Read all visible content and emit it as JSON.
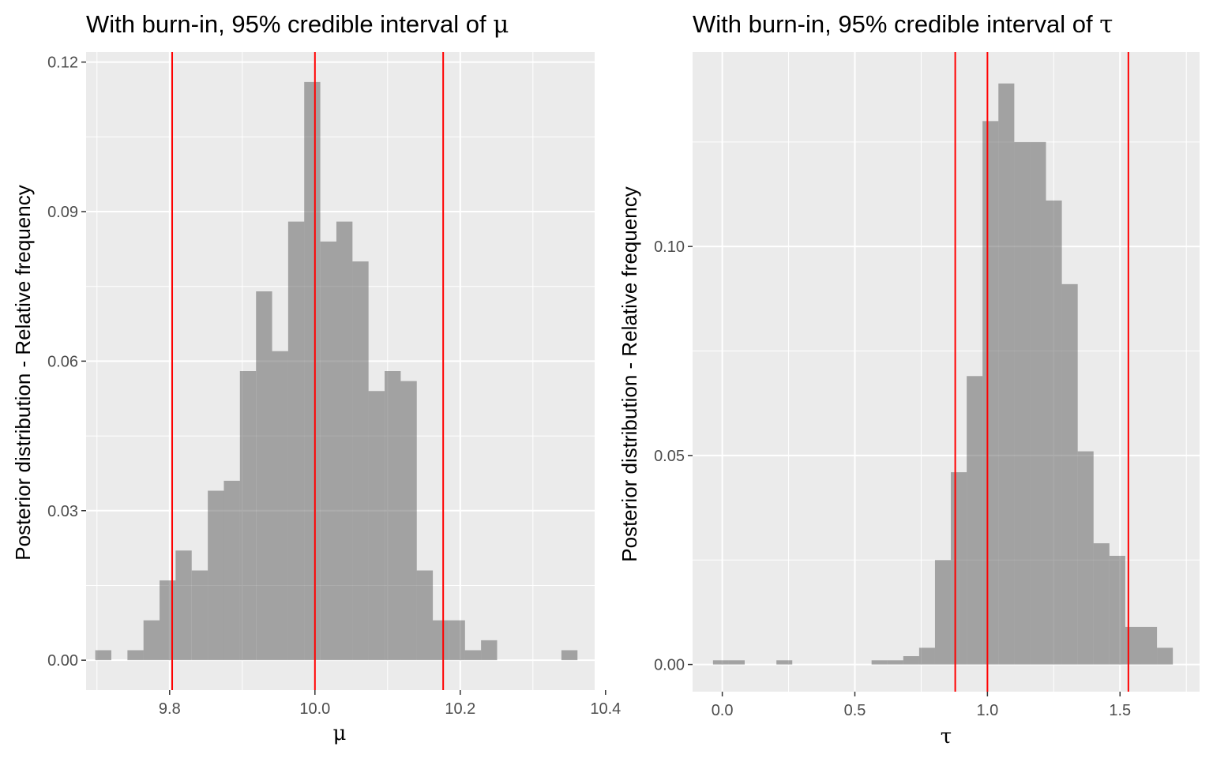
{
  "chart_data": [
    {
      "type": "bar",
      "title": "With burn-in, 95% credible interval of ",
      "title_symbol": "μ",
      "xlabel": "μ",
      "ylabel": "Posterior distribution - Relative frequency",
      "xlim": [
        9.685,
        10.385
      ],
      "ylim": [
        -0.006,
        0.122
      ],
      "x_ticks": [
        9.8,
        10.0,
        10.2,
        10.4
      ],
      "x_tick_labels": [
        "9.8",
        "10.0",
        "10.2",
        "10.4"
      ],
      "y_ticks": [
        0.0,
        0.03,
        0.06,
        0.09,
        0.12
      ],
      "y_tick_labels": [
        "0.00",
        "0.03",
        "0.06",
        "0.09",
        "0.12"
      ],
      "bin_width": 0.02212,
      "bin_centers": [
        9.7087,
        9.7308,
        9.753,
        9.7751,
        9.7972,
        9.8193,
        9.8415,
        9.8636,
        9.8857,
        9.9078,
        9.93,
        9.9521,
        9.9742,
        9.9963,
        10.0185,
        10.0406,
        10.0627,
        10.0848,
        10.107,
        10.1291,
        10.1512,
        10.1733,
        10.1955,
        10.2176,
        10.2397,
        10.2618,
        10.284,
        10.3061,
        10.3282,
        10.3503
      ],
      "values": [
        0.002,
        0.0,
        0.002,
        0.008,
        0.016,
        0.022,
        0.018,
        0.034,
        0.036,
        0.058,
        0.074,
        0.062,
        0.088,
        0.116,
        0.084,
        0.088,
        0.08,
        0.054,
        0.058,
        0.056,
        0.018,
        0.008,
        0.008,
        0.002,
        0.004,
        0.0,
        0.0,
        0.0,
        0.0,
        0.002
      ],
      "vlines": [
        9.8035,
        10.0,
        10.1765
      ],
      "bar_color": "#595959",
      "bar_opacity": 0.5,
      "line_color": "#ff0000",
      "panel_bg": "#ebebeb",
      "grid_color": "#ffffff",
      "grid": true
    },
    {
      "type": "bar",
      "title": "With burn-in, 95% credible interval of ",
      "title_symbol": "τ",
      "xlabel": "τ",
      "ylabel": "Posterior distribution - Relative frequency",
      "xlim": [
        -0.112,
        1.8
      ],
      "ylim": [
        -0.0065,
        0.1465
      ],
      "x_ticks": [
        0.0,
        0.5,
        1.0,
        1.5
      ],
      "x_tick_labels": [
        "0.0",
        "0.5",
        "1.0",
        "1.5"
      ],
      "y_ticks": [
        0.0,
        0.05,
        0.1
      ],
      "y_tick_labels": [
        "0.00",
        "0.05",
        "0.10"
      ],
      "bin_width": 0.0598,
      "bin_centers": [
        -0.0051,
        0.0547,
        0.1145,
        0.1743,
        0.2341,
        0.2939,
        0.3537,
        0.4135,
        0.4733,
        0.5331,
        0.5929,
        0.6527,
        0.7125,
        0.7723,
        0.8321,
        0.8919,
        0.9517,
        1.0115,
        1.0713,
        1.1311,
        1.1909,
        1.2507,
        1.3105,
        1.3703,
        1.4301,
        1.4899,
        1.5497,
        1.6095,
        1.6693
      ],
      "values": [
        0.001,
        0.001,
        0.0,
        0.0,
        0.001,
        0.0,
        0.0,
        0.0,
        0.0,
        0.0,
        0.001,
        0.001,
        0.002,
        0.004,
        0.025,
        0.046,
        0.069,
        0.13,
        0.139,
        0.125,
        0.125,
        0.111,
        0.091,
        0.051,
        0.029,
        0.026,
        0.009,
        0.009,
        0.004
      ],
      "vlines": [
        0.8785,
        1.0,
        1.5315
      ],
      "bar_color": "#595959",
      "bar_opacity": 0.5,
      "line_color": "#ff0000",
      "panel_bg": "#ebebeb",
      "grid_color": "#ffffff",
      "grid": true
    }
  ]
}
